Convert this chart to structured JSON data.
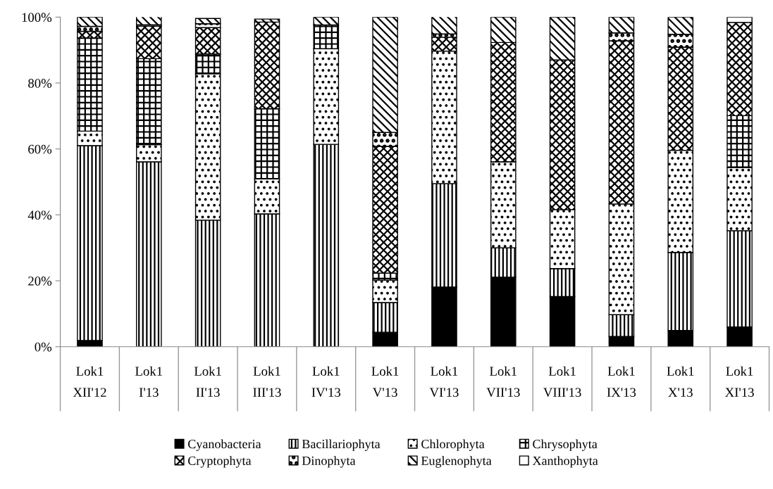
{
  "chart_data": {
    "type": "bar",
    "stacked": true,
    "categories": [
      "Lok1\nXII'12",
      "Lok1\nI'13",
      "Lok1\nII'13",
      "Lok1\nIII'13",
      "Lok1\nIV'13",
      "Lok1\nV'13",
      "Lok1\nVI'13",
      "Lok1\nVII'13",
      "Lok1\nVIII'13",
      "Lok1\nIX'13",
      "Lok1\nX'13",
      "Lok1\nXI'13"
    ],
    "series": [
      {
        "name": "Cyanobacteria",
        "color": "#000000",
        "values": [
          1.9,
          null,
          null,
          null,
          null,
          4.4,
          18.1,
          21.1,
          15.2,
          3.1,
          4.9,
          6.0
        ]
      },
      {
        "name": "Bacillariophyta",
        "color": "#000000",
        "values": [
          59.1,
          56.1,
          38.4,
          40.3,
          61.4,
          9.0,
          31.4,
          8.9,
          8.5,
          6.6,
          23.7,
          29.2
        ]
      },
      {
        "name": "Chlorophyta",
        "color": "#000000",
        "values": [
          4.4,
          5.2,
          44.4,
          10.6,
          29.0,
          6.8,
          40.2,
          26.1,
          17.9,
          33.6,
          31.0,
          19.1
        ]
      },
      {
        "name": "Chrysophyta",
        "color": "#000000",
        "values": [
          28.3,
          26.1,
          6.0,
          21.3,
          7.2,
          2.1,
          null,
          null,
          null,
          null,
          null,
          15.8
        ]
      },
      {
        "name": "Cryptophyta",
        "color": "#000000",
        "values": [
          2.0,
          9.9,
          8.0,
          26.3,
          null,
          38.5,
          4.2,
          36.2,
          45.4,
          49.5,
          31.3,
          28.3
        ]
      },
      {
        "name": "Dinophyta",
        "color": "#000000",
        "values": [
          1.5,
          0.4,
          1.2,
          null,
          null,
          4.2,
          1.0,
          null,
          null,
          2.4,
          3.9,
          null
        ]
      },
      {
        "name": "Euglenophyta",
        "color": "#000000",
        "values": [
          2.8,
          2.5,
          1.6,
          0.9,
          2.4,
          35.0,
          5.5,
          7.7,
          13.0,
          4.8,
          5.2,
          null
        ]
      },
      {
        "name": "Xanthophyta",
        "color": "#ffffff",
        "values": [
          null,
          null,
          null,
          null,
          null,
          null,
          null,
          null,
          null,
          null,
          null,
          1.6
        ]
      }
    ],
    "ylim": [
      0,
      100
    ],
    "yticks": [
      {
        "value": 0,
        "label": "0%"
      },
      {
        "value": 20,
        "label": "20%"
      },
      {
        "value": 40,
        "label": "40%"
      },
      {
        "value": 60,
        "label": "60%"
      },
      {
        "value": 80,
        "label": "80%"
      },
      {
        "value": 100,
        "label": "100%"
      }
    ],
    "grid": false,
    "legend": "bottom"
  }
}
